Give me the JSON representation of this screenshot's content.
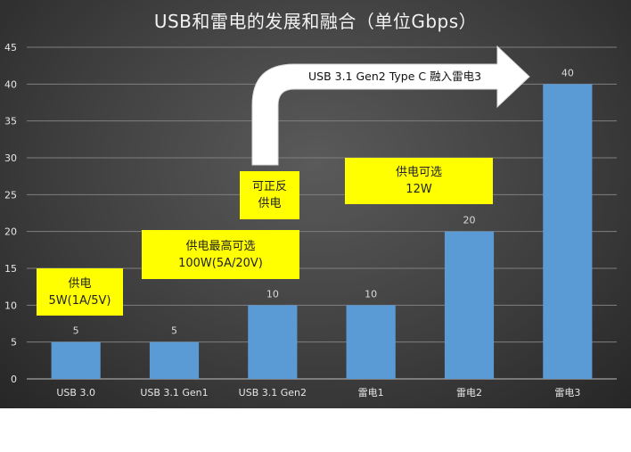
{
  "chart_data": {
    "type": "bar",
    "title": "USB和雷电的发展和融合（单位Gbps）",
    "categories": [
      "USB 3.0",
      "USB 3.1 Gen1",
      "USB 3.1 Gen2",
      "雷电1",
      "雷电2",
      "雷电3"
    ],
    "values": [
      5,
      5,
      10,
      10,
      20,
      40
    ],
    "data_labels": [
      "5",
      "5",
      "10",
      "10",
      "20",
      "40"
    ],
    "ylim": [
      0,
      45
    ],
    "yticks": [
      "0",
      "5",
      "10",
      "15",
      "20",
      "25",
      "30",
      "35",
      "40",
      "45"
    ],
    "grid": true,
    "bar_color": "#5b9bd5",
    "annotations": {
      "power1": {
        "line1": "供电",
        "line2": "5W(1A/5V)"
      },
      "power2": {
        "line1": "供电最高可选",
        "line2": "100W(5A/20V)"
      },
      "reversible": {
        "line1": "可正反",
        "line2": "供电"
      },
      "power3": {
        "line1": "供电可选",
        "line2": "12W"
      },
      "arrow": "USB 3.1 Gen2 Type C 融入雷电3"
    }
  }
}
